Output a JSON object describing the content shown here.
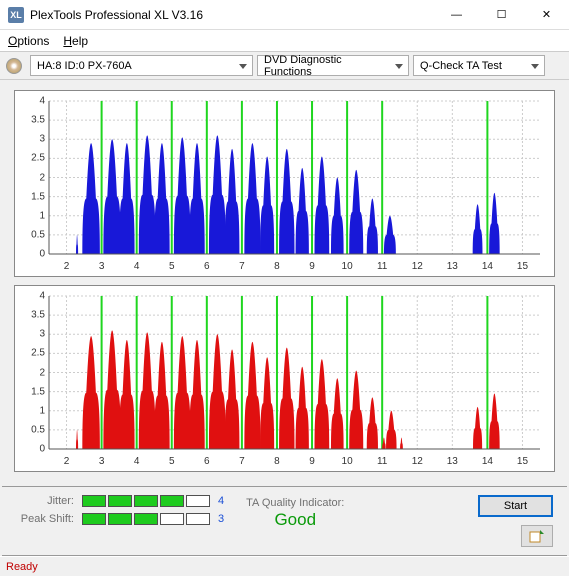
{
  "window": {
    "title": "PlexTools Professional XL V3.16"
  },
  "menu": {
    "options": "Options",
    "help": "Help"
  },
  "toolbar": {
    "drive": "HA:8 ID:0   PX-760A",
    "func": "DVD Diagnostic Functions",
    "test": "Q-Check TA Test"
  },
  "charts": {
    "ylim": [
      0,
      4
    ],
    "yticks": [
      0,
      0.5,
      1,
      1.5,
      2,
      2.5,
      3,
      3.5,
      4
    ],
    "xlim": [
      1.5,
      15.5
    ],
    "xticks": [
      2,
      3,
      4,
      5,
      6,
      7,
      8,
      9,
      10,
      11,
      12,
      13,
      14,
      15
    ],
    "markers": [
      3,
      4,
      5,
      6,
      7,
      8,
      9,
      10,
      11,
      14
    ],
    "grid_color": "#cccccc",
    "marker_color": "#1fd61f",
    "axis_color": "#555555",
    "bg": "#ffffff",
    "top": {
      "color": "#1818d8",
      "peaks": [
        {
          "c": 2.3,
          "w": 0.06,
          "h": 0.5
        },
        {
          "c": 2.7,
          "w": 0.5,
          "h": 2.9
        },
        {
          "c": 3.3,
          "w": 0.5,
          "h": 3.0
        },
        {
          "c": 3.72,
          "w": 0.44,
          "h": 2.9
        },
        {
          "c": 4.3,
          "w": 0.48,
          "h": 3.1
        },
        {
          "c": 4.72,
          "w": 0.44,
          "h": 2.9
        },
        {
          "c": 5.3,
          "w": 0.48,
          "h": 3.05
        },
        {
          "c": 5.72,
          "w": 0.44,
          "h": 2.9
        },
        {
          "c": 6.3,
          "w": 0.48,
          "h": 3.1
        },
        {
          "c": 6.72,
          "w": 0.42,
          "h": 2.75
        },
        {
          "c": 7.3,
          "w": 0.46,
          "h": 2.9
        },
        {
          "c": 7.72,
          "w": 0.4,
          "h": 2.55
        },
        {
          "c": 8.28,
          "w": 0.44,
          "h": 2.75
        },
        {
          "c": 8.72,
          "w": 0.38,
          "h": 2.25
        },
        {
          "c": 9.28,
          "w": 0.42,
          "h": 2.55
        },
        {
          "c": 9.72,
          "w": 0.36,
          "h": 2.0
        },
        {
          "c": 10.26,
          "w": 0.4,
          "h": 2.2
        },
        {
          "c": 10.72,
          "w": 0.32,
          "h": 1.45
        },
        {
          "c": 11.22,
          "w": 0.34,
          "h": 1.0
        },
        {
          "c": 13.72,
          "w": 0.28,
          "h": 1.3
        },
        {
          "c": 14.2,
          "w": 0.3,
          "h": 1.6
        }
      ]
    },
    "bottom": {
      "color": "#e01010",
      "peaks": [
        {
          "c": 2.3,
          "w": 0.06,
          "h": 0.5
        },
        {
          "c": 2.7,
          "w": 0.5,
          "h": 2.95
        },
        {
          "c": 3.3,
          "w": 0.5,
          "h": 3.1
        },
        {
          "c": 3.72,
          "w": 0.44,
          "h": 2.85
        },
        {
          "c": 4.3,
          "w": 0.48,
          "h": 3.05
        },
        {
          "c": 4.72,
          "w": 0.44,
          "h": 2.8
        },
        {
          "c": 5.3,
          "w": 0.48,
          "h": 2.95
        },
        {
          "c": 5.72,
          "w": 0.44,
          "h": 2.85
        },
        {
          "c": 6.3,
          "w": 0.48,
          "h": 3.0
        },
        {
          "c": 6.72,
          "w": 0.42,
          "h": 2.6
        },
        {
          "c": 7.3,
          "w": 0.46,
          "h": 2.8
        },
        {
          "c": 7.72,
          "w": 0.4,
          "h": 2.4
        },
        {
          "c": 8.28,
          "w": 0.44,
          "h": 2.65
        },
        {
          "c": 8.72,
          "w": 0.38,
          "h": 2.15
        },
        {
          "c": 9.28,
          "w": 0.42,
          "h": 2.35
        },
        {
          "c": 9.72,
          "w": 0.36,
          "h": 1.85
        },
        {
          "c": 10.26,
          "w": 0.4,
          "h": 2.05
        },
        {
          "c": 10.72,
          "w": 0.32,
          "h": 1.35
        },
        {
          "c": 11.05,
          "w": 0.1,
          "h": 0.3
        },
        {
          "c": 11.26,
          "w": 0.3,
          "h": 1.0
        },
        {
          "c": 11.55,
          "w": 0.08,
          "h": 0.3
        },
        {
          "c": 13.72,
          "w": 0.26,
          "h": 1.1
        },
        {
          "c": 14.2,
          "w": 0.3,
          "h": 1.45
        }
      ]
    }
  },
  "meters": {
    "jitter": {
      "label": "Jitter:",
      "segments": 5,
      "filled": 4,
      "value": "4",
      "on_color": "#1ecb1e"
    },
    "peakshift": {
      "label": "Peak Shift:",
      "segments": 5,
      "filled": 3,
      "value": "3",
      "on_color": "#1ecb1e"
    }
  },
  "quality": {
    "label": "TA Quality Indicator:",
    "value": "Good",
    "value_color": "#0a9a0a"
  },
  "buttons": {
    "start": "Start"
  },
  "status": {
    "text": "Ready"
  }
}
